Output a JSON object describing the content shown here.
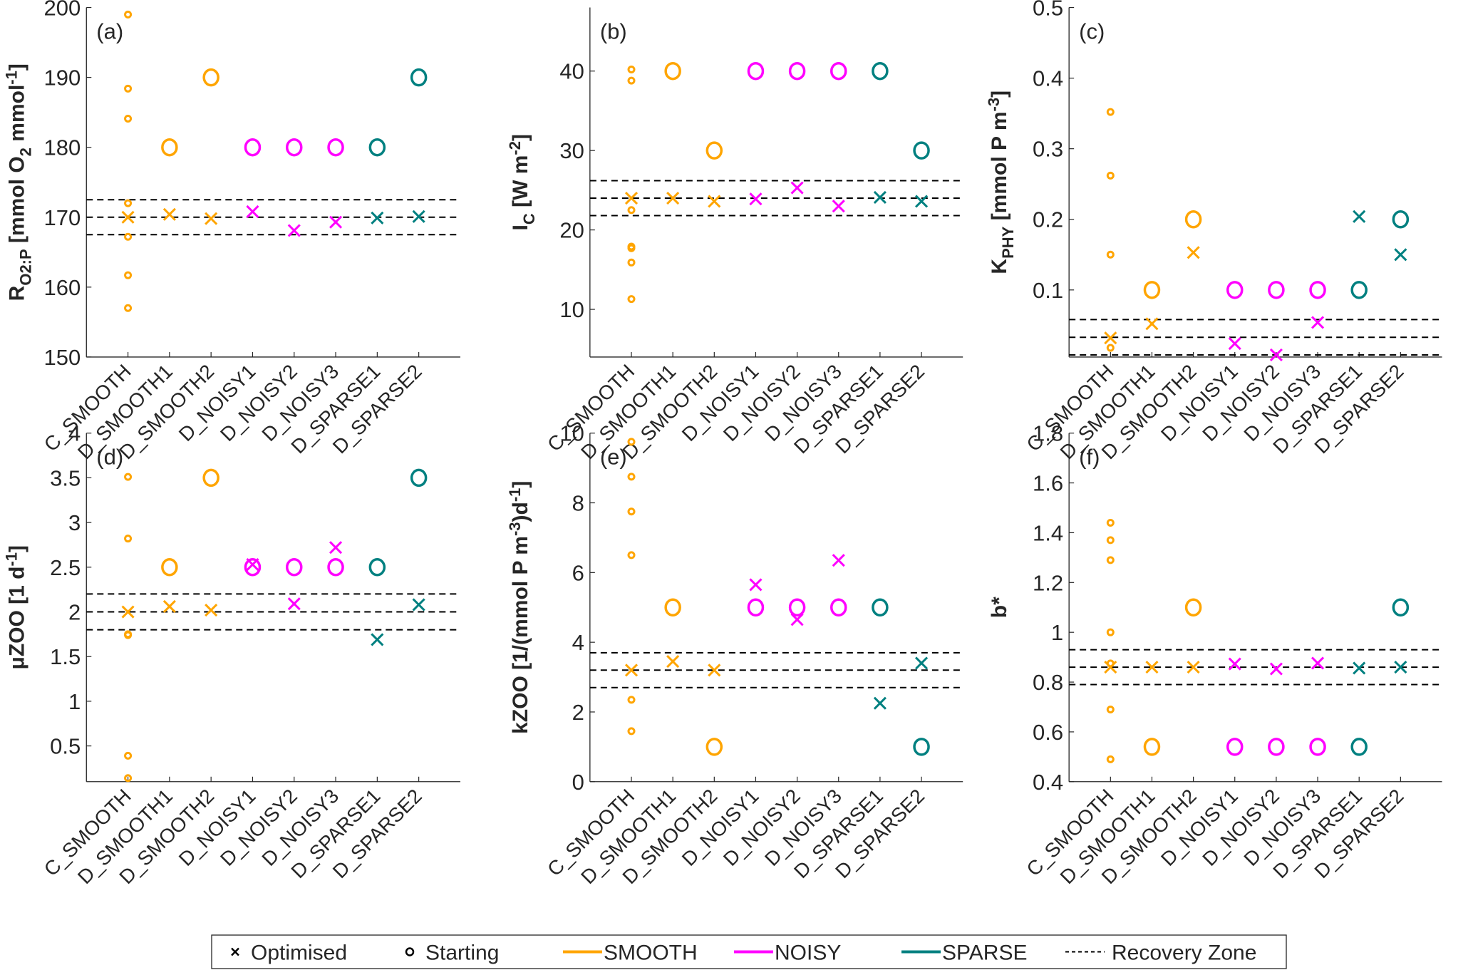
{
  "colors": {
    "SMOOTH": "#ffa500",
    "NOISY": "#ff00ff",
    "SPARSE": "#008080",
    "recovery": "#000000",
    "axis": "#262626"
  },
  "legend": {
    "placement": "bottom-center",
    "items": [
      {
        "label": "Optimised",
        "symbol": "x"
      },
      {
        "label": "Starting",
        "symbol": "o"
      },
      {
        "label": "SMOOTH",
        "symbol": "line",
        "color_key": "SMOOTH"
      },
      {
        "label": "NOISY",
        "symbol": "line",
        "color_key": "NOISY"
      },
      {
        "label": "SPARSE",
        "symbol": "line",
        "color_key": "SPARSE"
      },
      {
        "label": "Recovery Zone",
        "symbol": "dashed"
      }
    ]
  },
  "chart_data": [
    {
      "panel": "(a)",
      "type": "scatter",
      "ylabel": "R_O2:P [mmol O2 mmol^-1]",
      "ylabel_parts": {
        "main": "R",
        "sub": "O2:P",
        "rest": " [mmol O",
        "sub2": "2",
        "rest2": " mmol",
        "sup": "-1",
        "end": "]"
      },
      "categories": [
        "C_SMOOTH",
        "D_SMOOTH1",
        "D_SMOOTH2",
        "D_NOISY1",
        "D_NOISY2",
        "D_NOISY3",
        "D_SPARSE1",
        "D_SPARSE2"
      ],
      "group": [
        "SMOOTH",
        "SMOOTH",
        "SMOOTH",
        "NOISY",
        "NOISY",
        "NOISY",
        "SPARSE",
        "SPARSE"
      ],
      "ylim": [
        150,
        200
      ],
      "yticks": [
        150,
        160,
        170,
        180,
        190,
        200
      ],
      "ytick_labels": [
        "150",
        "160",
        "170",
        "180",
        "190",
        "200"
      ],
      "recovery_zone": [
        167.5,
        170,
        172.5
      ],
      "starting": [
        null,
        180,
        190,
        180,
        180,
        180,
        180,
        190
      ],
      "optimised": [
        170,
        170.4,
        169.8,
        170.8,
        168.1,
        169.3,
        169.9,
        170.1
      ],
      "c_smooth_starts": [
        199,
        188.4,
        184.1,
        172,
        167.2,
        161.7,
        157
      ],
      "grid": false
    },
    {
      "panel": "(b)",
      "type": "scatter",
      "ylabel": "I_C [W m^-2]",
      "ylabel_parts": {
        "main": "I",
        "sub": "C",
        "rest": " [W m",
        "sup": "-2",
        "end": "]"
      },
      "categories": [
        "C_SMOOTH",
        "D_SMOOTH1",
        "D_SMOOTH2",
        "D_NOISY1",
        "D_NOISY2",
        "D_NOISY3",
        "D_SPARSE1",
        "D_SPARSE2"
      ],
      "group": [
        "SMOOTH",
        "SMOOTH",
        "SMOOTH",
        "NOISY",
        "NOISY",
        "NOISY",
        "SPARSE",
        "SPARSE"
      ],
      "ylim": [
        4,
        48
      ],
      "yticks": [
        10,
        20,
        30,
        40
      ],
      "ytick_labels": [
        "10",
        "20",
        "30",
        "40"
      ],
      "recovery_zone": [
        21.8,
        24,
        26.2
      ],
      "starting": [
        null,
        40,
        30,
        40,
        40,
        40,
        40,
        30
      ],
      "optimised": [
        24,
        24,
        23.6,
        23.9,
        25.3,
        23,
        24.1,
        23.6
      ],
      "c_smooth_starts": [
        40.2,
        38.8,
        22.5,
        17.9,
        17.7,
        15.9,
        11.3
      ],
      "grid": false
    },
    {
      "panel": "(c)",
      "type": "scatter",
      "ylabel": "K_PHY [mmol P m^-3]",
      "ylabel_parts": {
        "main": "K",
        "sub": "PHY",
        "rest": " [mmol P m",
        "sup": "-3",
        "end": "]"
      },
      "categories": [
        "C_SMOOTH",
        "D_SMOOTH1",
        "D_SMOOTH2",
        "D_NOISY1",
        "D_NOISY2",
        "D_NOISY3",
        "D_SPARSE1",
        "D_SPARSE2"
      ],
      "group": [
        "SMOOTH",
        "SMOOTH",
        "SMOOTH",
        "NOISY",
        "NOISY",
        "NOISY",
        "SPARSE",
        "SPARSE"
      ],
      "ylim": [
        0.005,
        0.5
      ],
      "yticks": [
        0.1,
        0.2,
        0.3,
        0.4,
        0.5
      ],
      "ytick_labels": [
        "0.1",
        "0.2",
        "0.3",
        "0.4",
        "0.5"
      ],
      "recovery_zone": [
        0.008,
        0.033,
        0.058
      ],
      "starting": [
        null,
        0.1,
        0.2,
        0.1,
        0.1,
        0.1,
        0.1,
        0.2
      ],
      "optimised": [
        0.032,
        0.052,
        0.153,
        0.024,
        0.008,
        0.054,
        0.204,
        0.15
      ],
      "c_smooth_starts": [
        0.352,
        0.262,
        0.15,
        0.018
      ],
      "grid": false
    },
    {
      "panel": "(d)",
      "type": "scatter",
      "ylabel": "μZOO [1 d^-1]",
      "ylabel_parts": {
        "main": "μZOO [1 d",
        "sup": "-1",
        "end": "]"
      },
      "categories": [
        "C_SMOOTH",
        "D_SMOOTH1",
        "D_SMOOTH2",
        "D_NOISY1",
        "D_NOISY2",
        "D_NOISY3",
        "D_SPARSE1",
        "D_SPARSE2"
      ],
      "group": [
        "SMOOTH",
        "SMOOTH",
        "SMOOTH",
        "NOISY",
        "NOISY",
        "NOISY",
        "SPARSE",
        "SPARSE"
      ],
      "ylim": [
        0.1,
        4
      ],
      "yticks": [
        0.5,
        1,
        1.5,
        2,
        2.5,
        3,
        3.5,
        4
      ],
      "ytick_labels": [
        "0.5",
        "1",
        "1.5",
        "2",
        "2.5",
        "3",
        "3.5",
        "4"
      ],
      "recovery_zone": [
        1.8,
        2.0,
        2.2
      ],
      "starting": [
        null,
        2.5,
        3.5,
        2.5,
        2.5,
        2.5,
        2.5,
        3.5
      ],
      "optimised": [
        2.0,
        2.06,
        2.02,
        2.53,
        2.09,
        2.72,
        1.69,
        2.08
      ],
      "c_smooth_starts": [
        3.51,
        2.82,
        1.75,
        1.74,
        0.39,
        0.14
      ],
      "grid": false
    },
    {
      "panel": "(e)",
      "type": "scatter",
      "ylabel": "kZOO [1/(mmol P m^-3)d^-1]",
      "ylabel_parts": {
        "main": "kZOO [1/(mmol P m",
        "sup": "-3",
        "mid": ")d",
        "sup2": "-1",
        "end": "]"
      },
      "categories": [
        "C_SMOOTH",
        "D_SMOOTH1",
        "D_SMOOTH2",
        "D_NOISY1",
        "D_NOISY2",
        "D_NOISY3",
        "D_SPARSE1",
        "D_SPARSE2"
      ],
      "group": [
        "SMOOTH",
        "SMOOTH",
        "SMOOTH",
        "NOISY",
        "NOISY",
        "NOISY",
        "SPARSE",
        "SPARSE"
      ],
      "ylim": [
        0,
        10
      ],
      "yticks": [
        0,
        2,
        4,
        6,
        8,
        10
      ],
      "ytick_labels": [
        "0",
        "2",
        "4",
        "6",
        "8",
        "10"
      ],
      "recovery_zone": [
        2.7,
        3.2,
        3.7
      ],
      "starting": [
        null,
        5,
        1,
        5,
        5,
        5,
        5,
        1
      ],
      "optimised": [
        3.2,
        3.45,
        3.2,
        5.65,
        4.65,
        6.35,
        2.25,
        3.4
      ],
      "c_smooth_starts": [
        9.75,
        8.75,
        7.75,
        6.5,
        2.35,
        1.45
      ],
      "grid": false
    },
    {
      "panel": "(f)",
      "type": "scatter",
      "ylabel": "b*",
      "ylabel_parts": {
        "main": "b*"
      },
      "categories": [
        "C_SMOOTH",
        "D_SMOOTH1",
        "D_SMOOTH2",
        "D_NOISY1",
        "D_NOISY2",
        "D_NOISY3",
        "D_SPARSE1",
        "D_SPARSE2"
      ],
      "group": [
        "SMOOTH",
        "SMOOTH",
        "SMOOTH",
        "NOISY",
        "NOISY",
        "NOISY",
        "SPARSE",
        "SPARSE"
      ],
      "ylim": [
        0.4,
        1.8
      ],
      "yticks": [
        0.4,
        0.6,
        0.8,
        1,
        1.2,
        1.4,
        1.6,
        1.8
      ],
      "ytick_labels": [
        "0.4",
        "0.6",
        "0.8",
        "1",
        "1.2",
        "1.4",
        "1.6",
        "1.8"
      ],
      "recovery_zone": [
        0.79,
        0.86,
        0.93
      ],
      "starting": [
        null,
        0.54,
        1.1,
        0.54,
        0.54,
        0.54,
        0.54,
        1.1
      ],
      "optimised": [
        0.86,
        0.86,
        0.86,
        0.873,
        0.853,
        0.876,
        0.856,
        0.86
      ],
      "c_smooth_starts": [
        1.44,
        1.37,
        1.29,
        1.0,
        0.875,
        0.69,
        0.49
      ],
      "grid": false
    }
  ]
}
